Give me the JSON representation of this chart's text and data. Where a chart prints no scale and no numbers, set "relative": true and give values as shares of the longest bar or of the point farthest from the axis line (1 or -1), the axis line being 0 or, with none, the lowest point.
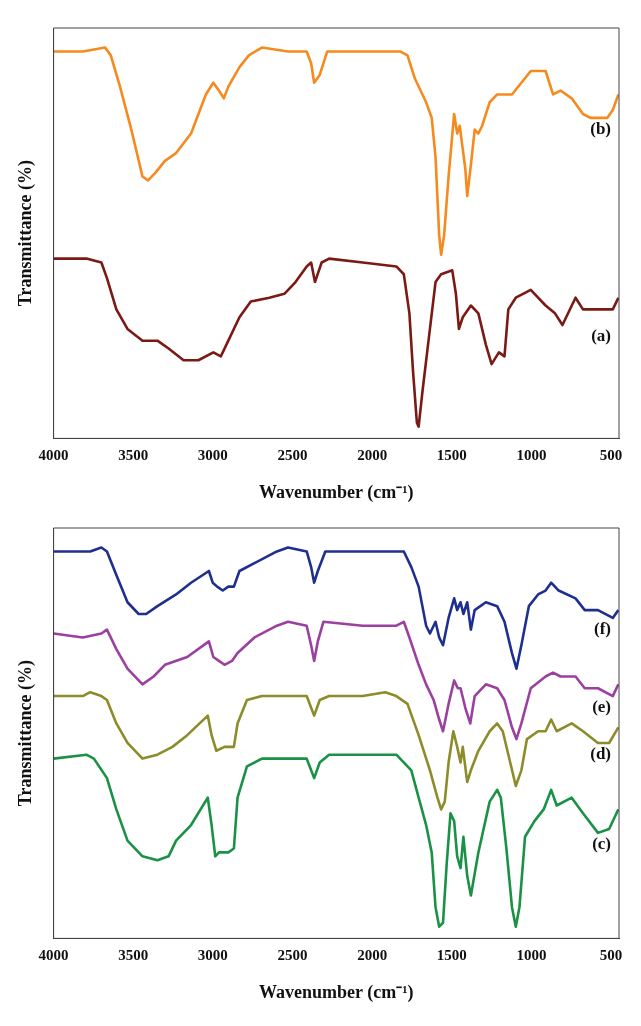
{
  "chart_data": [
    {
      "type": "line",
      "relative": true,
      "xlabel": "Wavenumber (cm⁻¹)",
      "ylabel": "Transmittance (%)",
      "xlim": [
        4000,
        450
      ],
      "xticks": [
        4000,
        3500,
        3000,
        2500,
        2000,
        1500,
        1000,
        500
      ],
      "grid": false,
      "legend": false,
      "marker": "none",
      "line_style": "solid",
      "series": [
        {
          "name": "(b)",
          "color": "#f58a1f",
          "x": [
            4000,
            3817,
            3677,
            3641,
            3583,
            3512,
            3442,
            3407,
            3360,
            3301,
            3231,
            3137,
            3044,
            2997,
            2962,
            2931,
            2903,
            2833,
            2774,
            2692,
            2528,
            2411,
            2383,
            2364,
            2329,
            2282,
            2059,
            1825,
            1778,
            1731,
            1661,
            1626,
            1602,
            1579,
            1567,
            1548,
            1520,
            1485,
            1466,
            1450,
            1431,
            1415,
            1403,
            1380,
            1356,
            1333,
            1309,
            1262,
            1215,
            1122,
            1063,
            1004,
            911,
            864,
            817,
            747,
            676,
            629,
            524,
            489,
            454
          ],
          "values": [
            0.99,
            0.99,
            1.0,
            0.98,
            0.9,
            0.79,
            0.67,
            0.66,
            0.68,
            0.71,
            0.73,
            0.78,
            0.88,
            0.91,
            0.89,
            0.87,
            0.9,
            0.95,
            0.98,
            1.0,
            0.99,
            0.99,
            0.96,
            0.91,
            0.93,
            0.99,
            0.99,
            0.99,
            0.98,
            0.92,
            0.86,
            0.82,
            0.72,
            0.52,
            0.47,
            0.52,
            0.67,
            0.83,
            0.78,
            0.8,
            0.74,
            0.69,
            0.62,
            0.7,
            0.79,
            0.78,
            0.8,
            0.86,
            0.88,
            0.88,
            0.91,
            0.94,
            0.94,
            0.88,
            0.89,
            0.87,
            0.83,
            0.82,
            0.82,
            0.84,
            0.88
          ]
        },
        {
          "name": "(a)",
          "color": "#7b1a14",
          "x": [
            4000,
            3794,
            3700,
            3665,
            3606,
            3536,
            3442,
            3348,
            3278,
            3184,
            3091,
            2997,
            2950,
            2903,
            2833,
            2762,
            2645,
            2551,
            2481,
            2411,
            2383,
            2359,
            2317,
            2270,
            2059,
            1848,
            1801,
            1766,
            1743,
            1719,
            1708,
            1684,
            1649,
            1602,
            1567,
            1497,
            1474,
            1455,
            1431,
            1380,
            1333,
            1286,
            1250,
            1204,
            1169,
            1145,
            1098,
            1004,
            911,
            852,
            805,
            723,
            676,
            582,
            489,
            454
          ],
          "values": [
            0.46,
            0.46,
            0.45,
            0.41,
            0.33,
            0.28,
            0.25,
            0.25,
            0.23,
            0.2,
            0.2,
            0.22,
            0.21,
            0.25,
            0.31,
            0.35,
            0.36,
            0.37,
            0.4,
            0.44,
            0.45,
            0.4,
            0.45,
            0.46,
            0.45,
            0.44,
            0.42,
            0.32,
            0.17,
            0.04,
            0.03,
            0.12,
            0.24,
            0.4,
            0.42,
            0.43,
            0.37,
            0.28,
            0.31,
            0.34,
            0.32,
            0.24,
            0.19,
            0.22,
            0.21,
            0.33,
            0.36,
            0.38,
            0.34,
            0.32,
            0.29,
            0.36,
            0.33,
            0.33,
            0.33,
            0.36
          ]
        }
      ]
    },
    {
      "type": "line",
      "relative": true,
      "xlabel": "Wavenumber (cm⁻¹)",
      "ylabel": "Transmittance (%)",
      "xlim": [
        4000,
        450
      ],
      "xticks": [
        4000,
        3500,
        3000,
        2500,
        2000,
        1500,
        1000,
        500
      ],
      "grid": false,
      "legend": false,
      "marker": "none",
      "line_style": "solid",
      "series": [
        {
          "name": "(f)",
          "color": "#1f2f8f",
          "x": [
            4000,
            3817,
            3770,
            3700,
            3665,
            3606,
            3536,
            3466,
            3419,
            3348,
            3231,
            3137,
            3025,
            3001,
            2973,
            2938,
            2903,
            2868,
            2833,
            2739,
            2598,
            2528,
            2411,
            2383,
            2364,
            2341,
            2294,
            2059,
            1801,
            1754,
            1708,
            1661,
            1637,
            1602,
            1579,
            1555,
            1520,
            1485,
            1466,
            1445,
            1427,
            1403,
            1380,
            1356,
            1286,
            1215,
            1169,
            1122,
            1094,
            1063,
            1016,
            958,
            911,
            876,
            829,
            723,
            665,
            582,
            489,
            454
          ],
          "values": [
            0.99,
            0.99,
            0.99,
            1.0,
            0.99,
            0.93,
            0.86,
            0.83,
            0.83,
            0.85,
            0.88,
            0.91,
            0.94,
            0.91,
            0.9,
            0.89,
            0.9,
            0.9,
            0.94,
            0.96,
            0.99,
            1.0,
            0.99,
            0.95,
            0.91,
            0.94,
            0.99,
            0.99,
            0.99,
            0.95,
            0.9,
            0.8,
            0.78,
            0.81,
            0.77,
            0.75,
            0.82,
            0.87,
            0.84,
            0.86,
            0.83,
            0.86,
            0.79,
            0.84,
            0.86,
            0.85,
            0.81,
            0.73,
            0.69,
            0.75,
            0.85,
            0.88,
            0.89,
            0.91,
            0.89,
            0.87,
            0.84,
            0.84,
            0.82,
            0.84
          ]
        },
        {
          "name": "(e)",
          "color": "#9b3fa0",
          "x": [
            4000,
            3817,
            3700,
            3665,
            3606,
            3536,
            3442,
            3372,
            3301,
            3161,
            3025,
            2997,
            2962,
            2927,
            2880,
            2845,
            2739,
            2598,
            2528,
            2411,
            2383,
            2364,
            2341,
            2306,
            2059,
            1848,
            1801,
            1766,
            1708,
            1661,
            1614,
            1579,
            1555,
            1520,
            1485,
            1462,
            1445,
            1415,
            1384,
            1356,
            1286,
            1215,
            1169,
            1122,
            1094,
            1063,
            1004,
            911,
            864,
            817,
            723,
            665,
            582,
            489,
            454
          ],
          "values": [
            0.78,
            0.77,
            0.78,
            0.79,
            0.74,
            0.69,
            0.65,
            0.67,
            0.7,
            0.72,
            0.76,
            0.72,
            0.71,
            0.7,
            0.71,
            0.73,
            0.77,
            0.8,
            0.81,
            0.8,
            0.75,
            0.71,
            0.76,
            0.81,
            0.8,
            0.8,
            0.81,
            0.77,
            0.7,
            0.65,
            0.61,
            0.56,
            0.53,
            0.6,
            0.66,
            0.64,
            0.64,
            0.59,
            0.55,
            0.62,
            0.65,
            0.64,
            0.61,
            0.54,
            0.51,
            0.55,
            0.64,
            0.67,
            0.68,
            0.67,
            0.67,
            0.64,
            0.64,
            0.62,
            0.65
          ]
        },
        {
          "name": "(d)",
          "color": "#8c8c2a",
          "x": [
            4000,
            3817,
            3770,
            3700,
            3665,
            3606,
            3536,
            3442,
            3348,
            3254,
            3161,
            3032,
            3008,
            2978,
            2927,
            2868,
            2845,
            2786,
            2692,
            2528,
            2411,
            2383,
            2364,
            2329,
            2270,
            2059,
            1918,
            1848,
            1778,
            1708,
            1637,
            1590,
            1567,
            1544,
            1520,
            1490,
            1466,
            1445,
            1431,
            1403,
            1380,
            1333,
            1262,
            1215,
            1180,
            1133,
            1098,
            1063,
            1028,
            958,
            911,
            876,
            841,
            747,
            676,
            582,
            512,
            454
          ],
          "values": [
            0.62,
            0.62,
            0.63,
            0.62,
            0.61,
            0.55,
            0.5,
            0.46,
            0.47,
            0.49,
            0.52,
            0.57,
            0.52,
            0.48,
            0.49,
            0.49,
            0.55,
            0.61,
            0.62,
            0.62,
            0.62,
            0.59,
            0.57,
            0.61,
            0.62,
            0.62,
            0.63,
            0.62,
            0.6,
            0.52,
            0.43,
            0.36,
            0.33,
            0.35,
            0.45,
            0.53,
            0.49,
            0.45,
            0.49,
            0.4,
            0.43,
            0.48,
            0.53,
            0.55,
            0.53,
            0.45,
            0.39,
            0.43,
            0.51,
            0.53,
            0.53,
            0.56,
            0.53,
            0.55,
            0.53,
            0.5,
            0.5,
            0.54
          ]
        },
        {
          "name": "(c)",
          "color": "#1a9145",
          "x": [
            4000,
            3794,
            3747,
            3665,
            3606,
            3536,
            3442,
            3348,
            3278,
            3231,
            3137,
            3032,
            3008,
            2985,
            2962,
            2903,
            2868,
            2845,
            2786,
            2692,
            2411,
            2383,
            2364,
            2329,
            2270,
            1848,
            1754,
            1708,
            1661,
            1626,
            1602,
            1579,
            1555,
            1532,
            1508,
            1485,
            1466,
            1445,
            1427,
            1403,
            1380,
            1333,
            1262,
            1215,
            1192,
            1157,
            1122,
            1098,
            1075,
            1040,
            981,
            923,
            876,
            841,
            747,
            676,
            582,
            512,
            454
          ],
          "values": [
            0.46,
            0.47,
            0.46,
            0.41,
            0.33,
            0.25,
            0.21,
            0.2,
            0.21,
            0.25,
            0.29,
            0.36,
            0.29,
            0.21,
            0.22,
            0.22,
            0.23,
            0.36,
            0.44,
            0.46,
            0.46,
            0.43,
            0.41,
            0.45,
            0.47,
            0.47,
            0.43,
            0.36,
            0.29,
            0.22,
            0.08,
            0.03,
            0.04,
            0.19,
            0.32,
            0.3,
            0.21,
            0.18,
            0.26,
            0.16,
            0.11,
            0.22,
            0.35,
            0.38,
            0.36,
            0.23,
            0.08,
            0.03,
            0.08,
            0.26,
            0.3,
            0.33,
            0.38,
            0.34,
            0.36,
            0.32,
            0.27,
            0.28,
            0.33
          ]
        }
      ]
    }
  ]
}
